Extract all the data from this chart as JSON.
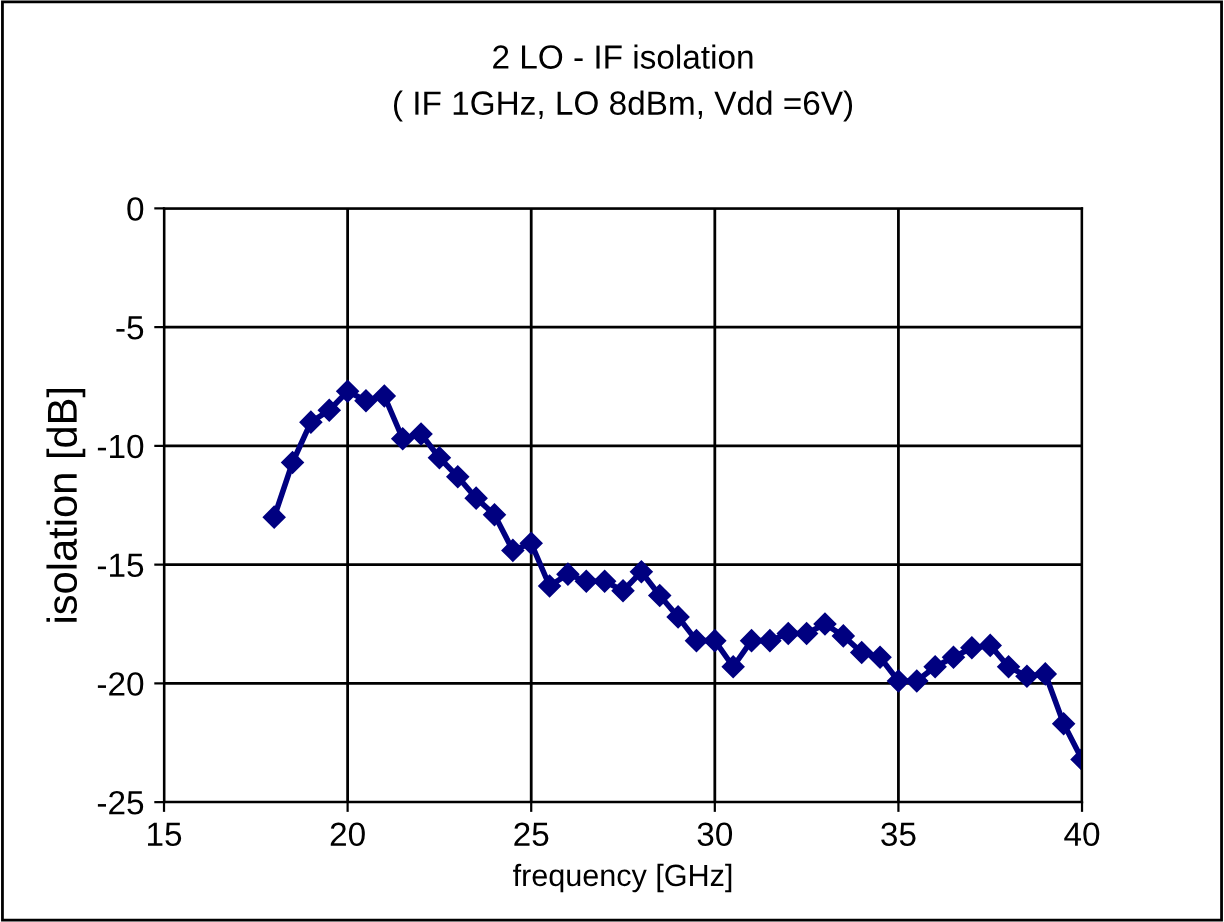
{
  "chart_data": {
    "type": "line",
    "title": "2 LO - IF isolation",
    "subtitle": "( IF 1GHz, LO 8dBm, Vdd =6V)",
    "xlabel": "frequency [GHz]",
    "ylabel": "isolation [dB]",
    "x": [
      18,
      18.5,
      19,
      19.5,
      20,
      20.5,
      21,
      21.5,
      22,
      22.5,
      23,
      23.5,
      24,
      24.5,
      25,
      25.5,
      26,
      26.5,
      27,
      27.5,
      28,
      28.5,
      29,
      29.5,
      30,
      30.5,
      31,
      31.5,
      32,
      32.5,
      33,
      33.5,
      34,
      34.5,
      35,
      35.5,
      36,
      36.5,
      37,
      37.5,
      38,
      38.5,
      39,
      39.5,
      40
    ],
    "series": [
      {
        "color": "#000080",
        "values": [
          -13,
          -10.7,
          -9,
          -8.5,
          -7.7,
          -8.1,
          -7.9,
          -9.7,
          -9.5,
          -10.5,
          -11.3,
          -12.2,
          -12.9,
          -14.4,
          -14.1,
          -15.9,
          -15.4,
          -15.7,
          -15.7,
          -16.1,
          -15.3,
          -16.3,
          -17.2,
          -18.2,
          -18.2,
          -19.3,
          -18.2,
          -18.2,
          -17.9,
          -17.9,
          -17.5,
          -18,
          -18.7,
          -18.9,
          -19.9,
          -19.9,
          -19.3,
          -18.9,
          -18.5,
          -18.4,
          -19.3,
          -19.7,
          -19.6,
          -21.7,
          -23.2
        ]
      }
    ],
    "xlim": [
      15,
      40
    ],
    "xticks": [
      15,
      20,
      25,
      30,
      35,
      40
    ],
    "ylim": [
      -25,
      0
    ],
    "yticks": [
      -25,
      -20,
      -15,
      -10,
      -5,
      0
    ],
    "grid": true,
    "marker": "diamond",
    "line_style": "solid"
  }
}
